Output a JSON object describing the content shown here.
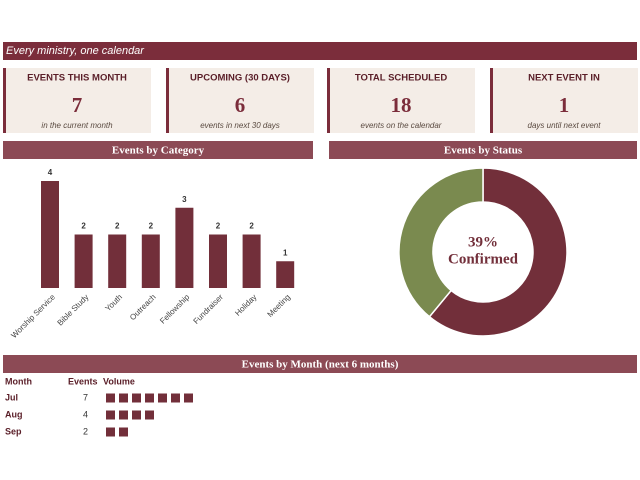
{
  "header": {
    "title": "Every ministry, one calendar"
  },
  "kpis": [
    {
      "title": "EVENTS THIS MONTH",
      "value": "7",
      "sub": "in the current month"
    },
    {
      "title": "UPCOMING (30 DAYS)",
      "value": "6",
      "sub": "events in next 30 days"
    },
    {
      "title": "TOTAL SCHEDULED",
      "value": "18",
      "sub": "events on the calendar"
    },
    {
      "title": "NEXT EVENT IN",
      "value": "1",
      "sub": "days until next event"
    }
  ],
  "chart_data": [
    {
      "type": "bar",
      "title": "Events by Category",
      "categories": [
        "Worship Service",
        "Bible Study",
        "Youth",
        "Outreach",
        "Fellowship",
        "Fundraiser",
        "Holiday",
        "Meeting"
      ],
      "values": [
        4,
        2,
        2,
        2,
        3,
        2,
        2,
        1
      ],
      "color": "#722f3a"
    },
    {
      "type": "pie",
      "title": "Events by Status",
      "categories": [
        null,
        "Confirmed"
      ],
      "values": [
        61,
        39
      ],
      "value_labels": [
        null,
        "39%"
      ],
      "colors": [
        "#722f3a",
        "#7a8a4f"
      ]
    }
  ],
  "month_table": {
    "title": "Events by Month (next 6 months)",
    "columns": [
      "Month",
      "Events",
      "Volume"
    ],
    "rows": [
      {
        "month": "Jul",
        "events": 7
      },
      {
        "month": "Aug",
        "events": 4
      },
      {
        "month": "Sep",
        "events": 2
      }
    ],
    "color": "#722f3a"
  }
}
